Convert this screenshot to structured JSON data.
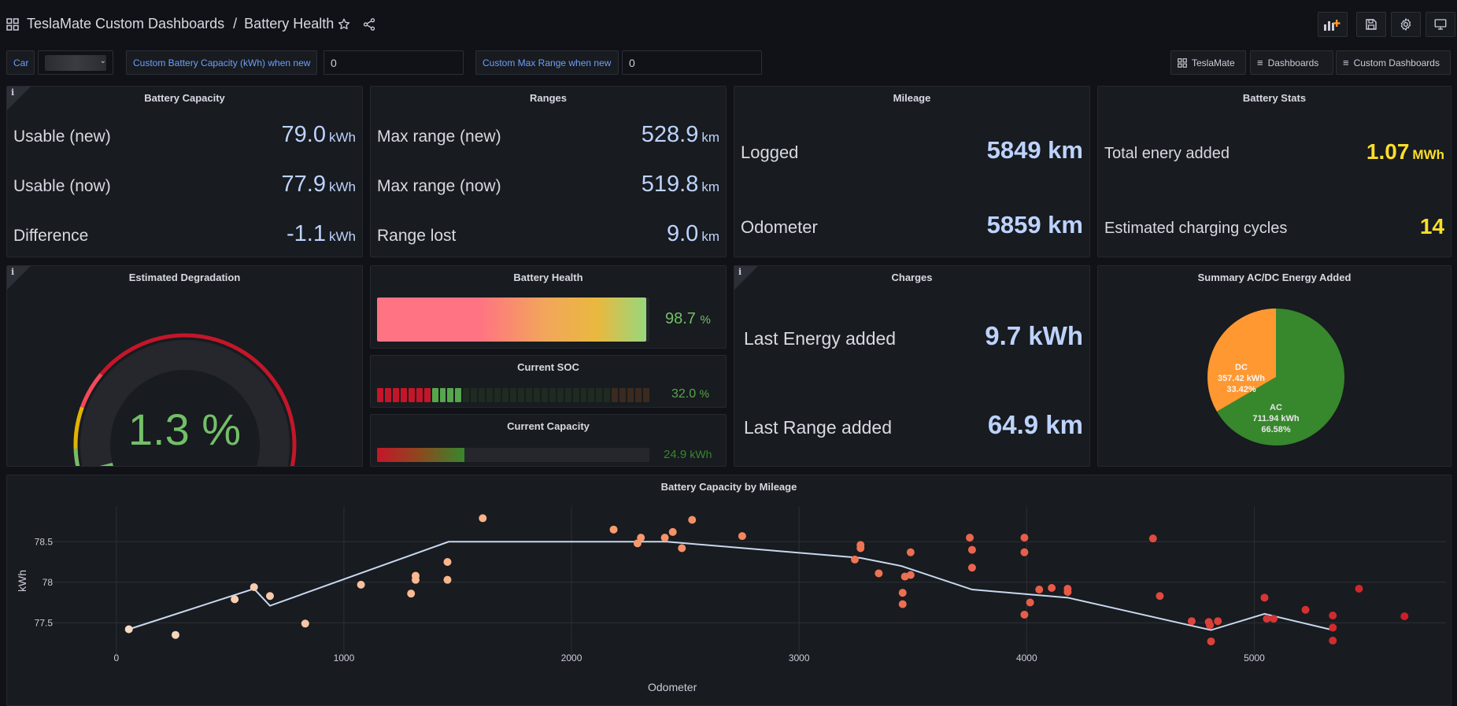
{
  "header": {
    "breadcrumb_folder": "TeslaMate Custom Dashboards",
    "breadcrumb_separator": "/",
    "page_title": "Battery Health"
  },
  "variables": {
    "car_label": "Car",
    "capacity_label": "Custom Battery Capacity (kWh) when new",
    "capacity_value": "0",
    "range_label": "Custom Max Range when new",
    "range_value": "0"
  },
  "links": {
    "teslamate": "TeslaMate",
    "dashboards": "Dashboards",
    "custom_dashboards": "Custom Dashboards"
  },
  "battery_capacity": {
    "title": "Battery Capacity",
    "rows": [
      {
        "label": "Usable (new)",
        "value": "79.0",
        "unit": "kWh"
      },
      {
        "label": "Usable (now)",
        "value": "77.9",
        "unit": "kWh"
      },
      {
        "label": "Difference",
        "value": "-1.1",
        "unit": "kWh"
      }
    ]
  },
  "ranges": {
    "title": "Ranges",
    "rows": [
      {
        "label": "Max range (new)",
        "value": "528.9",
        "unit": "km"
      },
      {
        "label": "Max range (now)",
        "value": "519.8",
        "unit": "km"
      },
      {
        "label": "Range lost",
        "value": "9.0",
        "unit": "km"
      }
    ]
  },
  "mileage": {
    "title": "Mileage",
    "rows": [
      {
        "label": "Logged",
        "value": "5849 km"
      },
      {
        "label": "Odometer",
        "value": "5859 km"
      }
    ]
  },
  "battery_stats": {
    "title": "Battery Stats",
    "rows": [
      {
        "label": "Total enery added",
        "value": "1.07",
        "unit": "MWh"
      },
      {
        "label": "Estimated charging cycles",
        "value": "14",
        "unit": ""
      }
    ],
    "value_color": "#fade2a"
  },
  "degradation": {
    "title": "Estimated Degradation",
    "value": "1.3 %",
    "gauge_fraction": 0.013,
    "color": "#73bf69"
  },
  "battery_health": {
    "title": "Battery Health",
    "value": "98.7",
    "unit": "%",
    "fraction": 0.987
  },
  "current_soc": {
    "title": "Current SOC",
    "value": "32.0",
    "unit": "%",
    "fraction": 0.32
  },
  "current_capacity": {
    "title": "Current Capacity",
    "value": "24.9",
    "unit": "kWh",
    "fraction": 0.32
  },
  "charges": {
    "title": "Charges",
    "rows": [
      {
        "label": "Last Energy added",
        "value": "9.7 kWh"
      },
      {
        "label": "Last Range added",
        "value": "64.9 km"
      }
    ]
  },
  "summary": {
    "title": "Summary AC/DC Energy Added",
    "slices": [
      {
        "name": "AC",
        "value": "711.94 kWh",
        "percent": "66.58%",
        "fraction": 0.6658,
        "color": "#37872d"
      },
      {
        "name": "DC",
        "value": "357.42 kWh",
        "percent": "33.42%",
        "fraction": 0.3342,
        "color": "#ff9830"
      }
    ]
  },
  "chart_data": {
    "type": "scatter",
    "title": "Battery Capacity by Mileage",
    "xlabel": "Odometer",
    "ylabel": "kWh",
    "xlim": [
      -480,
      5870
    ],
    "ylim": [
      77.25,
      78.93
    ],
    "xticks": [
      0,
      1000,
      2000,
      3000,
      4000,
      5000
    ],
    "yticks": [
      77.5,
      78,
      78.5
    ],
    "xtick_labels": [
      "0",
      "1000",
      "2000",
      "3000",
      "4000",
      "5000"
    ],
    "ytick_labels": [
      "77.5",
      "78",
      "78.5"
    ],
    "points": [
      {
        "x": 55,
        "y": 77.42
      },
      {
        "x": 260,
        "y": 77.35
      },
      {
        "x": 520,
        "y": 77.79
      },
      {
        "x": 605,
        "y": 77.94
      },
      {
        "x": 675,
        "y": 77.83
      },
      {
        "x": 830,
        "y": 77.49
      },
      {
        "x": 1075,
        "y": 77.97
      },
      {
        "x": 1295,
        "y": 77.86
      },
      {
        "x": 1315,
        "y": 78.03
      },
      {
        "x": 1315,
        "y": 78.08
      },
      {
        "x": 1455,
        "y": 78.25
      },
      {
        "x": 1455,
        "y": 78.03
      },
      {
        "x": 1610,
        "y": 78.79
      },
      {
        "x": 2185,
        "y": 78.65
      },
      {
        "x": 2290,
        "y": 78.48
      },
      {
        "x": 2305,
        "y": 78.55
      },
      {
        "x": 2410,
        "y": 78.55
      },
      {
        "x": 2445,
        "y": 78.62
      },
      {
        "x": 2485,
        "y": 78.42
      },
      {
        "x": 2530,
        "y": 78.77
      },
      {
        "x": 2750,
        "y": 78.57
      },
      {
        "x": 3245,
        "y": 78.28
      },
      {
        "x": 3270,
        "y": 78.46
      },
      {
        "x": 3270,
        "y": 78.42
      },
      {
        "x": 3350,
        "y": 78.11
      },
      {
        "x": 3455,
        "y": 77.87
      },
      {
        "x": 3455,
        "y": 77.73
      },
      {
        "x": 3465,
        "y": 78.07
      },
      {
        "x": 3490,
        "y": 78.37
      },
      {
        "x": 3490,
        "y": 78.09
      },
      {
        "x": 3750,
        "y": 78.55
      },
      {
        "x": 3760,
        "y": 78.4
      },
      {
        "x": 3760,
        "y": 78.18
      },
      {
        "x": 3990,
        "y": 78.55
      },
      {
        "x": 3990,
        "y": 78.37
      },
      {
        "x": 3990,
        "y": 77.6
      },
      {
        "x": 4015,
        "y": 77.75
      },
      {
        "x": 4055,
        "y": 77.91
      },
      {
        "x": 4110,
        "y": 77.93
      },
      {
        "x": 4180,
        "y": 77.92
      },
      {
        "x": 4180,
        "y": 77.88
      },
      {
        "x": 4555,
        "y": 78.54
      },
      {
        "x": 4585,
        "y": 77.83
      },
      {
        "x": 4725,
        "y": 77.52
      },
      {
        "x": 4800,
        "y": 77.51
      },
      {
        "x": 4805,
        "y": 77.47
      },
      {
        "x": 4810,
        "y": 77.27
      },
      {
        "x": 4840,
        "y": 77.52
      },
      {
        "x": 5045,
        "y": 77.81
      },
      {
        "x": 5055,
        "y": 77.55
      },
      {
        "x": 5085,
        "y": 77.55
      },
      {
        "x": 5225,
        "y": 77.66
      },
      {
        "x": 5345,
        "y": 77.59
      },
      {
        "x": 5345,
        "y": 77.44
      },
      {
        "x": 5345,
        "y": 77.28
      },
      {
        "x": 5460,
        "y": 77.92
      },
      {
        "x": 5660,
        "y": 77.58
      }
    ],
    "line": [
      {
        "x": 55,
        "y": 77.42
      },
      {
        "x": 605,
        "y": 77.92
      },
      {
        "x": 675,
        "y": 77.71
      },
      {
        "x": 1460,
        "y": 78.5
      },
      {
        "x": 2420,
        "y": 78.5
      },
      {
        "x": 3270,
        "y": 78.3
      },
      {
        "x": 3450,
        "y": 78.2
      },
      {
        "x": 3760,
        "y": 77.91
      },
      {
        "x": 4180,
        "y": 77.81
      },
      {
        "x": 4810,
        "y": 77.41
      },
      {
        "x": 5045,
        "y": 77.61
      },
      {
        "x": 5345,
        "y": 77.41
      }
    ]
  }
}
